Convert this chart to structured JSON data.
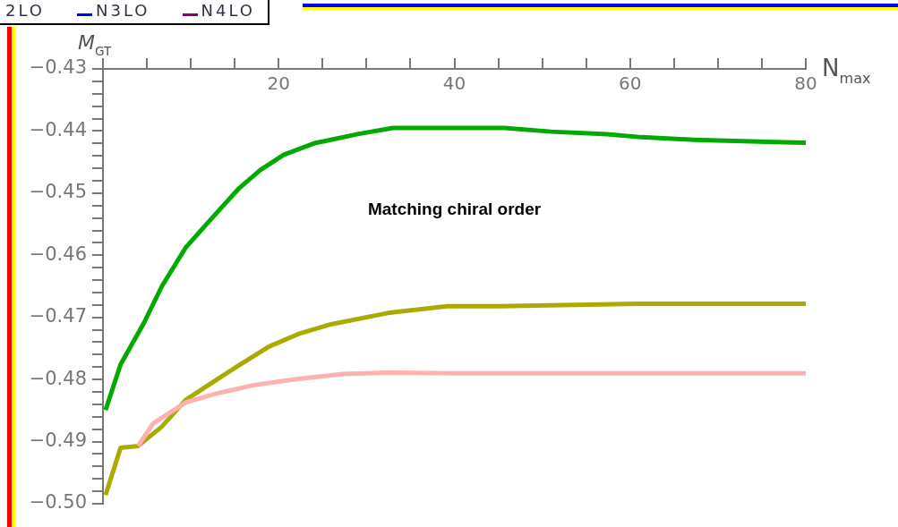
{
  "chart_data": {
    "type": "line",
    "xlabel": "N$_{max}$",
    "ylabel": "M$_{GT}$",
    "marker": "none",
    "annotations": [
      "Matching chiral order",
      "2LO",
      "N3LO",
      "N4LO"
    ],
    "xlim": [
      0,
      80
    ],
    "xticks": [
      {
        "value": 0,
        "label": null
      },
      {
        "value": 5,
        "label": null
      },
      {
        "value": 10,
        "label": null
      },
      {
        "value": 15,
        "label": null
      },
      20,
      {
        "value": 25,
        "label": null
      },
      {
        "value": 30,
        "label": null
      },
      {
        "value": 35,
        "label": null
      },
      40,
      {
        "value": 45,
        "label": null
      },
      {
        "value": 50,
        "label": null
      },
      {
        "value": 55,
        "label": null
      },
      60,
      {
        "value": 65,
        "label": null
      },
      {
        "value": 70,
        "label": null
      },
      {
        "value": 75,
        "label": null
      },
      80
    ],
    "ylim": [
      -0.5,
      -0.43
    ],
    "yticks": [
      {
        "value": -0.5,
        "label": "−0.50"
      },
      {
        "value": -0.498,
        "label": null
      },
      {
        "value": -0.496,
        "label": null
      },
      {
        "value": -0.494,
        "label": null
      },
      {
        "value": -0.492,
        "label": null
      },
      {
        "value": -0.49,
        "label": "−0.49"
      },
      {
        "value": -0.488,
        "label": null
      },
      {
        "value": -0.486,
        "label": null
      },
      {
        "value": -0.484,
        "label": null
      },
      {
        "value": -0.482,
        "label": null
      },
      {
        "value": -0.48,
        "label": "−0.48"
      },
      {
        "value": -0.478,
        "label": null
      },
      {
        "value": -0.476,
        "label": null
      },
      {
        "value": -0.474,
        "label": null
      },
      {
        "value": -0.472,
        "label": null
      },
      {
        "value": -0.47,
        "label": "−0.47"
      },
      {
        "value": -0.468,
        "label": null
      },
      {
        "value": -0.466,
        "label": null
      },
      {
        "value": -0.464,
        "label": null
      },
      {
        "value": -0.462,
        "label": null
      },
      {
        "value": -0.46,
        "label": "−0.46"
      },
      {
        "value": -0.458,
        "label": null
      },
      {
        "value": -0.456,
        "label": null
      },
      {
        "value": -0.454,
        "label": null
      },
      {
        "value": -0.452,
        "label": null
      },
      {
        "value": -0.45,
        "label": "−0.45"
      },
      {
        "value": -0.448,
        "label": null
      },
      {
        "value": -0.446,
        "label": null
      },
      {
        "value": -0.444,
        "label": null
      },
      {
        "value": -0.442,
        "label": null
      },
      {
        "value": -0.44,
        "label": "−0.44"
      },
      {
        "value": -0.438,
        "label": null
      },
      {
        "value": -0.436,
        "label": null
      },
      {
        "value": -0.434,
        "label": null
      },
      {
        "value": -0.432,
        "label": null
      },
      {
        "value": -0.43,
        "label": "−0.43"
      }
    ],
    "series": [
      {
        "color": "#ffb0b0",
        "x": [
          4,
          5.7,
          9.4,
          12.8,
          17.2,
          22.2,
          27.3,
          32.4,
          40,
          50,
          60,
          70,
          80
        ],
        "values": [
          -0.4907,
          -0.4871,
          -0.4837,
          -0.4823,
          -0.4809,
          -0.4799,
          -0.4791,
          -0.4789,
          -0.479,
          -0.479,
          -0.479,
          -0.479,
          -0.479
        ]
      },
      {
        "color": "#aaaa00",
        "x": [
          0.3,
          2,
          4,
          6.7,
          9.4,
          12,
          15.5,
          18.9,
          22.2,
          25.7,
          32.4,
          39.2,
          45,
          61,
          80
        ],
        "values": [
          -0.4986,
          -0.491,
          -0.4907,
          -0.4876,
          -0.4833,
          -0.4809,
          -0.4777,
          -0.4747,
          -0.4727,
          -0.4712,
          -0.4693,
          -0.4682,
          -0.4682,
          -0.4678,
          -0.4678
        ]
      },
      {
        "color": "#00aa00",
        "x": [
          0.3,
          2,
          4.7,
          6.7,
          9.4,
          12.1,
          15.5,
          17.9,
          20.6,
          24,
          29,
          33,
          45.7,
          51,
          57.4,
          61.3,
          67.2,
          77.5,
          80
        ],
        "values": [
          -0.4849,
          -0.4776,
          -0.4708,
          -0.465,
          -0.4588,
          -0.4545,
          -0.4492,
          -0.4463,
          -0.4438,
          -0.442,
          -0.4405,
          -0.4395,
          -0.4395,
          -0.4401,
          -0.4405,
          -0.441,
          -0.4414,
          -0.4418,
          -0.4419
        ]
      }
    ]
  }
}
